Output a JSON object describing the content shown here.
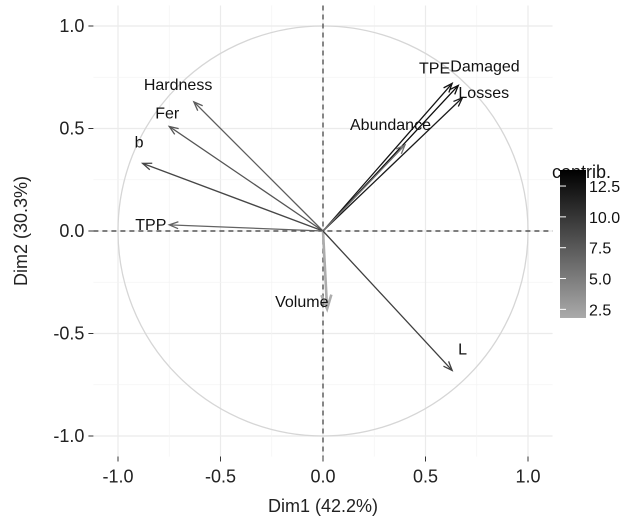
{
  "chart_data": {
    "type": "scatter",
    "subtype": "pca-variable-correlation-circle",
    "xlabel": "Dim1 (42.2%)",
    "ylabel": "Dim2 (30.3%)",
    "xlim": [
      -1.0,
      1.0
    ],
    "ylim": [
      -1.0,
      1.0
    ],
    "x_ticks": [
      "-1.0",
      "-0.5",
      "0.0",
      "0.5",
      "1.0"
    ],
    "y_ticks": [
      "-1.0",
      "-0.5",
      "0.0",
      "0.5",
      "1.0"
    ],
    "grid": true,
    "legend": {
      "title": "contrib.",
      "placement": "right",
      "ticks": [
        "12.5",
        "10.0",
        "7.5",
        "5.0",
        "2.5"
      ],
      "tick_values": [
        12.5,
        10.0,
        7.5,
        5.0,
        2.5
      ],
      "range": [
        1.8,
        13.8
      ]
    },
    "variables": [
      {
        "name": "TPE",
        "x": 0.63,
        "y": 0.72,
        "contrib": 12.5
      },
      {
        "name": "Damaged",
        "x": 0.66,
        "y": 0.71,
        "contrib": 13.0
      },
      {
        "name": "Losses",
        "x": 0.68,
        "y": 0.65,
        "contrib": 12.0
      },
      {
        "name": "Abundance",
        "x": 0.4,
        "y": 0.42,
        "contrib": 6.0
      },
      {
        "name": "Hardness",
        "x": -0.63,
        "y": 0.63,
        "contrib": 7.5
      },
      {
        "name": "Fer",
        "x": -0.75,
        "y": 0.51,
        "contrib": 8.0
      },
      {
        "name": "b",
        "x": -0.88,
        "y": 0.33,
        "contrib": 9.0
      },
      {
        "name": "TPP",
        "x": -0.75,
        "y": 0.03,
        "contrib": 7.0
      },
      {
        "name": "Volume",
        "x": 0.02,
        "y": -0.38,
        "contrib": 2.0
      },
      {
        "name": "L",
        "x": 0.63,
        "y": -0.68,
        "contrib": 9.5
      }
    ]
  }
}
